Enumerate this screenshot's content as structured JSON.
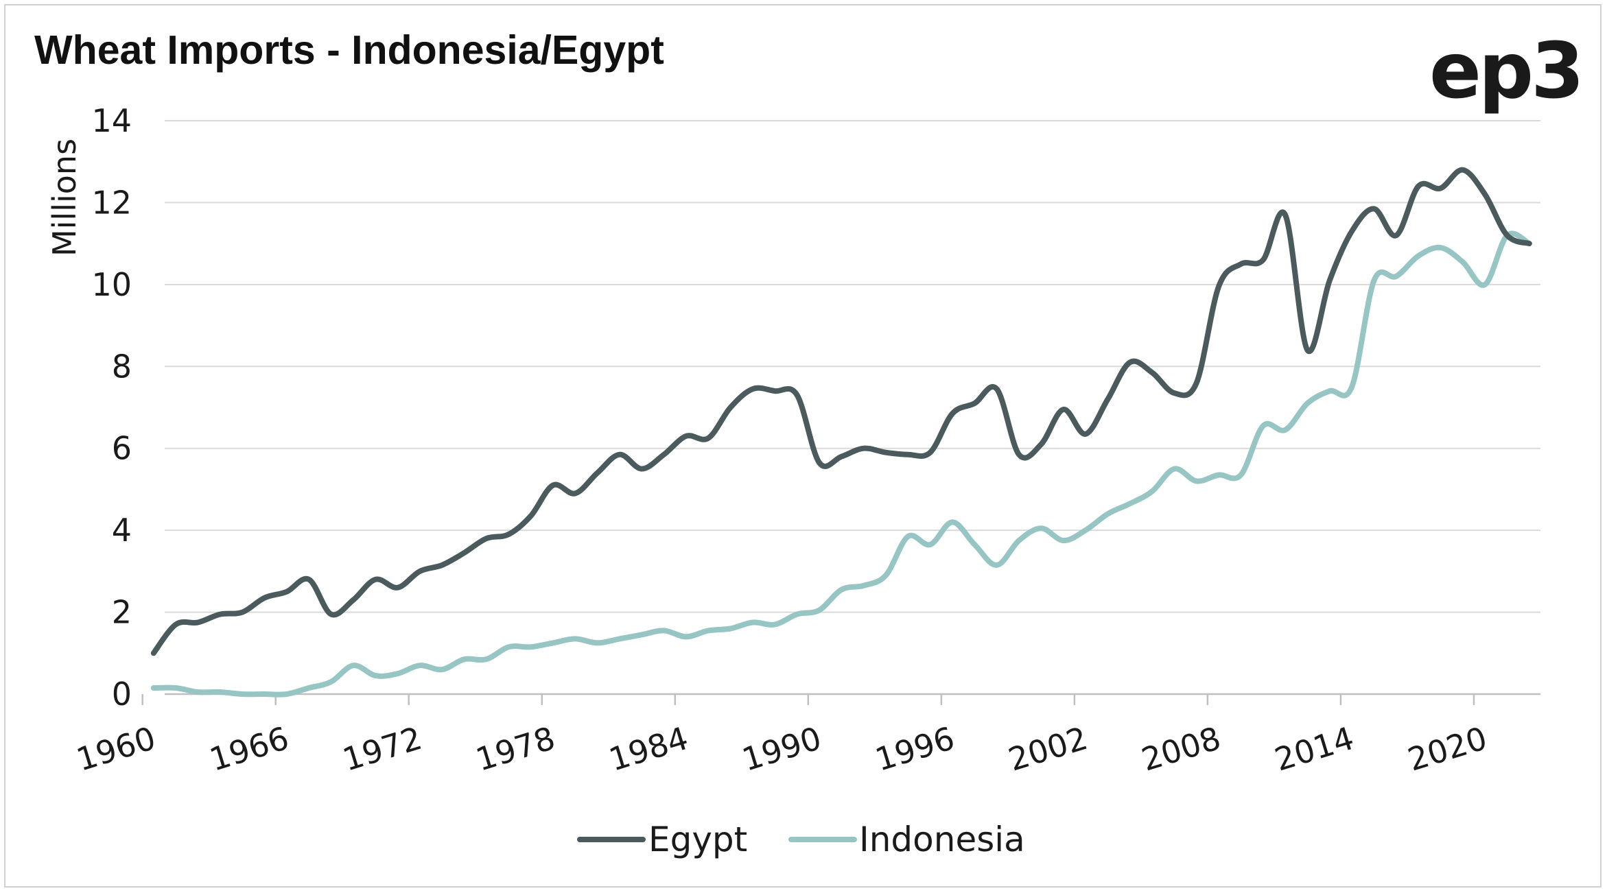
{
  "header": {
    "title": "Wheat Imports - Indonesia/Egypt",
    "logo": "ep3"
  },
  "colors": {
    "egypt": "#4a5a5d",
    "indonesia": "#96c5c4",
    "grid": "#d9d9d9",
    "axis": "#bfbfbf",
    "text": "#1a1a1a"
  },
  "chart_data": {
    "type": "line",
    "title": "Wheat Imports - Indonesia/Egypt",
    "xlabel": "",
    "ylabel": "Millions",
    "xlim": [
      1960,
      2022
    ],
    "ylim": [
      0,
      14
    ],
    "x_ticks": [
      "1960",
      "1966",
      "1972",
      "1978",
      "1984",
      "1990",
      "1996",
      "2002",
      "2008",
      "2014",
      "2020"
    ],
    "y_ticks": [
      "0",
      "2",
      "4",
      "6",
      "8",
      "10",
      "12",
      "14"
    ],
    "grid": true,
    "legend_position": "bottom",
    "x": [
      1960,
      1961,
      1962,
      1963,
      1964,
      1965,
      1966,
      1967,
      1968,
      1969,
      1970,
      1971,
      1972,
      1973,
      1974,
      1975,
      1976,
      1977,
      1978,
      1979,
      1980,
      1981,
      1982,
      1983,
      1984,
      1985,
      1986,
      1987,
      1988,
      1989,
      1990,
      1991,
      1992,
      1993,
      1994,
      1995,
      1996,
      1997,
      1998,
      1999,
      2000,
      2001,
      2002,
      2003,
      2004,
      2005,
      2006,
      2007,
      2008,
      2009,
      2010,
      2011,
      2012,
      2013,
      2014,
      2015,
      2016,
      2017,
      2018,
      2019,
      2020,
      2021,
      2022
    ],
    "series": [
      {
        "name": "Egypt",
        "values": [
          1.0,
          1.7,
          1.75,
          1.95,
          2.0,
          2.35,
          2.5,
          2.8,
          1.95,
          2.3,
          2.8,
          2.6,
          3.0,
          3.15,
          3.45,
          3.8,
          3.9,
          4.35,
          5.1,
          4.9,
          5.4,
          5.85,
          5.5,
          5.85,
          6.3,
          6.25,
          7.0,
          7.45,
          7.4,
          7.3,
          5.65,
          5.8,
          6.0,
          5.9,
          5.85,
          5.9,
          6.85,
          7.1,
          7.45,
          5.85,
          6.1,
          6.95,
          6.35,
          7.2,
          8.1,
          7.85,
          7.35,
          7.6,
          9.95,
          10.5,
          10.6,
          11.7,
          8.4,
          10.1,
          11.3,
          11.85,
          11.2,
          12.4,
          12.35,
          12.8,
          12.2,
          11.2,
          11.0
        ]
      },
      {
        "name": "Indonesia",
        "values": [
          0.15,
          0.15,
          0.05,
          0.05,
          0.0,
          0.0,
          0.0,
          0.15,
          0.3,
          0.7,
          0.45,
          0.5,
          0.7,
          0.6,
          0.85,
          0.85,
          1.15,
          1.15,
          1.25,
          1.35,
          1.25,
          1.35,
          1.45,
          1.55,
          1.4,
          1.55,
          1.6,
          1.75,
          1.7,
          1.95,
          2.05,
          2.55,
          2.65,
          2.9,
          3.85,
          3.65,
          4.2,
          3.65,
          3.15,
          3.75,
          4.05,
          3.75,
          4.0,
          4.4,
          4.65,
          4.95,
          5.5,
          5.2,
          5.35,
          5.35,
          6.55,
          6.45,
          7.1,
          7.4,
          7.5,
          10.1,
          10.2,
          10.7,
          10.9,
          10.55,
          10.0,
          11.2,
          11.0
        ]
      }
    ]
  }
}
